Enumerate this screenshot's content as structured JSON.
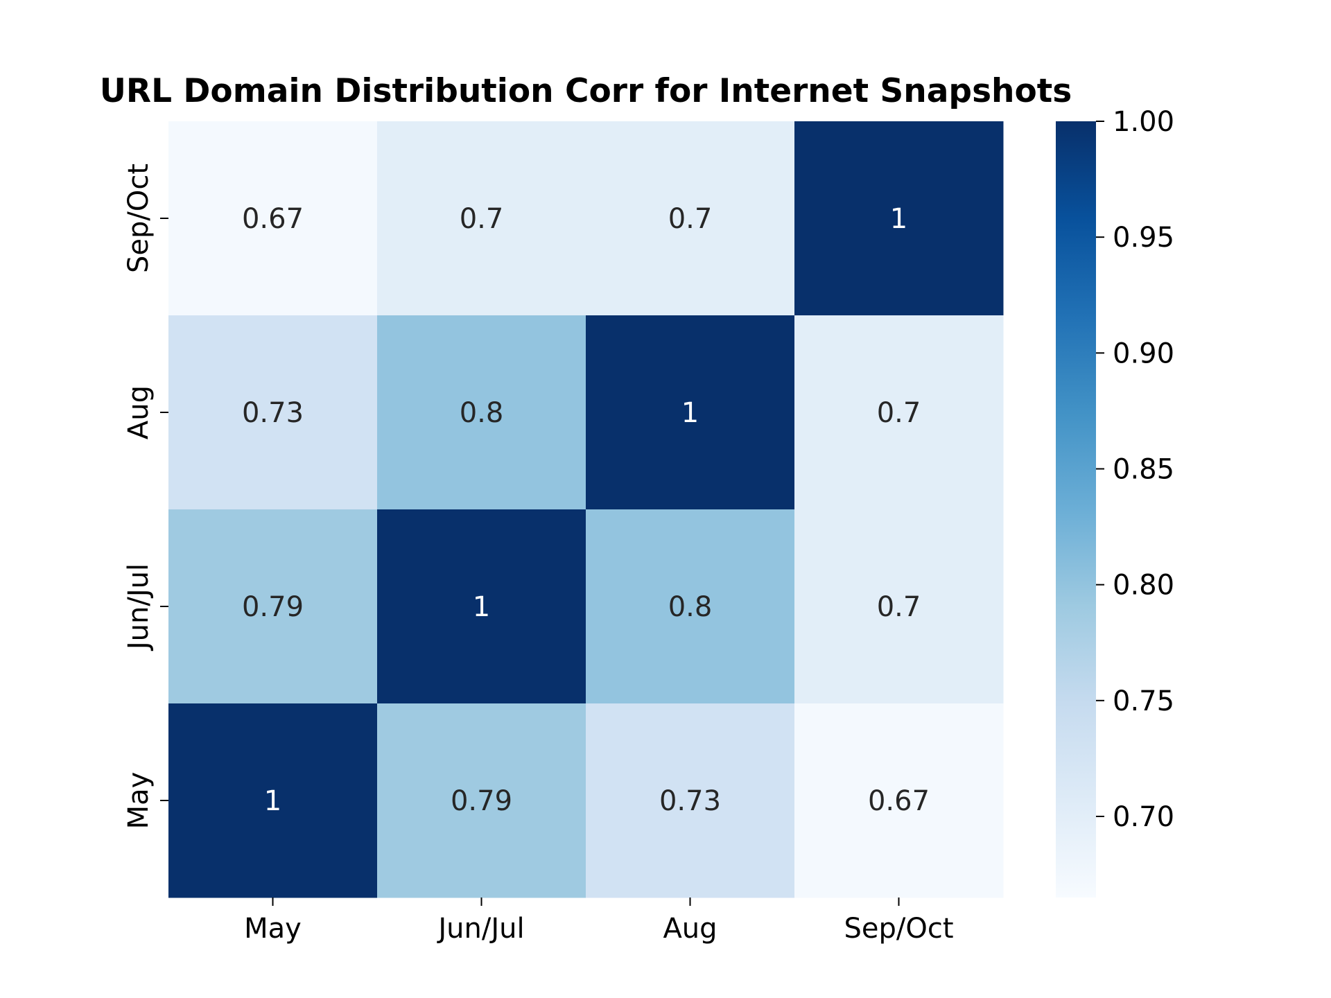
{
  "chart_data": {
    "type": "heatmap",
    "title": "URL Domain Distribution Corr for Internet Snapshots",
    "xlabel": "",
    "ylabel": "",
    "x_categories": [
      "May",
      "Jun/Jul",
      "Aug",
      "Sep/Oct"
    ],
    "y_categories_top_to_bottom": [
      "Sep/Oct",
      "Aug",
      "Jun/Jul",
      "May"
    ],
    "matrix_top_to_bottom": [
      [
        0.67,
        0.7,
        0.7,
        1.0
      ],
      [
        0.73,
        0.8,
        1.0,
        0.7
      ],
      [
        0.79,
        1.0,
        0.8,
        0.7
      ],
      [
        1.0,
        0.79,
        0.73,
        0.67
      ]
    ],
    "annotations_top_to_bottom": [
      [
        "0.67",
        "0.7",
        "0.7",
        "1"
      ],
      [
        "0.73",
        "0.8",
        "1",
        "0.7"
      ],
      [
        "0.79",
        "1",
        "0.8",
        "0.7"
      ],
      [
        "1",
        "0.79",
        "0.73",
        "0.67"
      ]
    ],
    "colorbar": {
      "colormap": "Blues",
      "vmin": 0.665,
      "vmax": 1.0,
      "ticks": [
        0.7,
        0.75,
        0.8,
        0.85,
        0.9,
        0.95,
        1.0
      ],
      "tick_labels": [
        "0.70",
        "0.75",
        "0.80",
        "0.85",
        "0.90",
        "0.95",
        "1.00"
      ]
    },
    "grid": false,
    "legend": "colorbar-right"
  }
}
